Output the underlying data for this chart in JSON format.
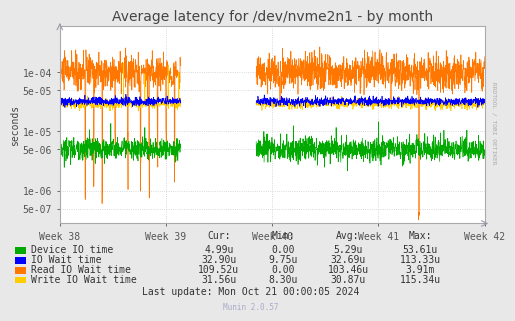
{
  "title": "Average latency for /dev/nvme2n1 - by month",
  "ylabel": "seconds",
  "background_color": "#e8e8e8",
  "plot_bg_color": "#ffffff",
  "grid_color": "#cccccc",
  "week_labels": [
    "Week 38",
    "Week 39",
    "Week 40",
    "Week 41",
    "Week 42"
  ],
  "ylim_min": 2.8e-07,
  "ylim_max": 0.0006,
  "legend_entries": [
    {
      "label": "Device IO time",
      "color": "#00aa00",
      "cur": "4.99u",
      "min": "0.00",
      "avg": "5.29u",
      "max": "53.61u"
    },
    {
      "label": "IO Wait time",
      "color": "#0000ff",
      "cur": "32.90u",
      "min": "9.75u",
      "avg": "32.69u",
      "max": "113.33u"
    },
    {
      "label": "Read IO Wait time",
      "color": "#ff7700",
      "cur": "109.52u",
      "min": "0.00",
      "avg": "103.46u",
      "max": "3.91m"
    },
    {
      "label": "Write IO Wait time",
      "color": "#ffcc00",
      "cur": "31.56u",
      "min": "8.30u",
      "avg": "30.87u",
      "max": "115.34u"
    }
  ],
  "footer": "Last update: Mon Oct 21 00:00:05 2024",
  "watermark": "Munin 2.0.57",
  "rrdtool_text": "RRDTOOL / TOBI OETIKER",
  "title_fontsize": 10,
  "axis_fontsize": 7,
  "legend_fontsize": 7
}
